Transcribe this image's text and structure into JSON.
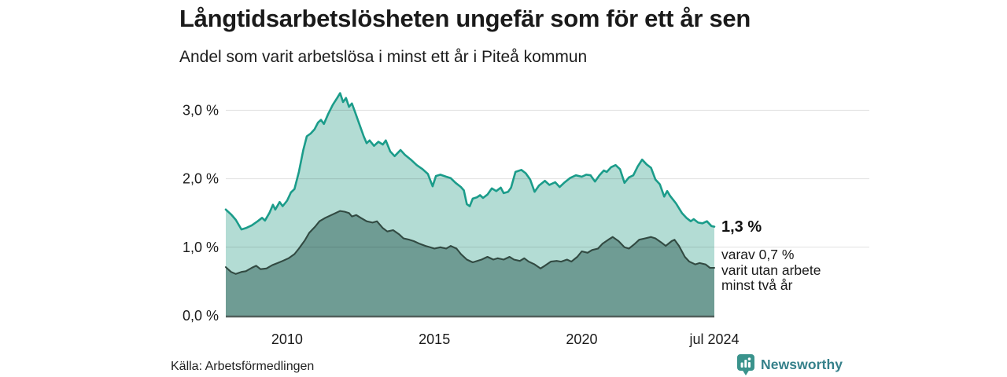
{
  "header": {
    "title": "Långtidsarbetslösheten ungefär som för ett år sen",
    "subtitle": "Andel som varit arbetslösa i minst ett år i Piteå kommun"
  },
  "chart_data": {
    "type": "area",
    "title": "Långtidsarbetslösheten ungefär som för ett år sen",
    "subtitle": "Andel som varit arbetslösa i minst ett år i Piteå kommun",
    "grid": true,
    "legend_position": "none",
    "x_axis": {
      "range": [
        2007.92,
        2024.5
      ],
      "ticks": [
        {
          "label": "2010",
          "year": 2010
        },
        {
          "label": "2015",
          "year": 2015
        },
        {
          "label": "2020",
          "year": 2020
        },
        {
          "label": "jul 2024",
          "year": 2024.5
        }
      ]
    },
    "y_axis": {
      "unit": "%",
      "range": [
        0,
        3.35
      ],
      "ticks": [
        {
          "label": "0,0 %",
          "value": 0
        },
        {
          "label": "1,0 %",
          "value": 1
        },
        {
          "label": "2,0 %",
          "value": 2
        },
        {
          "label": "3,0 %",
          "value": 3
        }
      ]
    },
    "series": [
      {
        "name": "Arbetslösa minst ett år",
        "line_color": "#1b9c8a",
        "fill_color": "#b3dcd4",
        "line_width": 2.6,
        "points": [
          [
            2007.92,
            1.55
          ],
          [
            2008.1,
            1.48
          ],
          [
            2008.26,
            1.4
          ],
          [
            2008.45,
            1.26
          ],
          [
            2008.6,
            1.28
          ],
          [
            2008.8,
            1.32
          ],
          [
            2009.0,
            1.38
          ],
          [
            2009.15,
            1.43
          ],
          [
            2009.25,
            1.39
          ],
          [
            2009.4,
            1.5
          ],
          [
            2009.52,
            1.62
          ],
          [
            2009.6,
            1.55
          ],
          [
            2009.75,
            1.66
          ],
          [
            2009.85,
            1.6
          ],
          [
            2010.0,
            1.68
          ],
          [
            2010.13,
            1.8
          ],
          [
            2010.25,
            1.85
          ],
          [
            2010.4,
            2.1
          ],
          [
            2010.55,
            2.42
          ],
          [
            2010.67,
            2.62
          ],
          [
            2010.8,
            2.66
          ],
          [
            2010.93,
            2.72
          ],
          [
            2011.05,
            2.82
          ],
          [
            2011.15,
            2.86
          ],
          [
            2011.25,
            2.8
          ],
          [
            2011.4,
            2.95
          ],
          [
            2011.55,
            3.08
          ],
          [
            2011.7,
            3.18
          ],
          [
            2011.8,
            3.25
          ],
          [
            2011.9,
            3.12
          ],
          [
            2012.0,
            3.18
          ],
          [
            2012.1,
            3.05
          ],
          [
            2012.2,
            3.1
          ],
          [
            2012.3,
            2.98
          ],
          [
            2012.45,
            2.8
          ],
          [
            2012.6,
            2.62
          ],
          [
            2012.7,
            2.52
          ],
          [
            2012.8,
            2.56
          ],
          [
            2012.95,
            2.48
          ],
          [
            2013.1,
            2.54
          ],
          [
            2013.25,
            2.5
          ],
          [
            2013.35,
            2.56
          ],
          [
            2013.5,
            2.4
          ],
          [
            2013.65,
            2.33
          ],
          [
            2013.85,
            2.42
          ],
          [
            2014.0,
            2.35
          ],
          [
            2014.2,
            2.28
          ],
          [
            2014.4,
            2.2
          ],
          [
            2014.6,
            2.14
          ],
          [
            2014.78,
            2.07
          ],
          [
            2014.94,
            1.89
          ],
          [
            2015.05,
            2.04
          ],
          [
            2015.2,
            2.06
          ],
          [
            2015.4,
            2.03
          ],
          [
            2015.55,
            2.01
          ],
          [
            2015.72,
            1.94
          ],
          [
            2015.9,
            1.88
          ],
          [
            2016.0,
            1.83
          ],
          [
            2016.1,
            1.63
          ],
          [
            2016.2,
            1.6
          ],
          [
            2016.3,
            1.71
          ],
          [
            2016.45,
            1.73
          ],
          [
            2016.55,
            1.76
          ],
          [
            2016.65,
            1.72
          ],
          [
            2016.8,
            1.77
          ],
          [
            2016.95,
            1.86
          ],
          [
            2017.1,
            1.82
          ],
          [
            2017.25,
            1.87
          ],
          [
            2017.35,
            1.79
          ],
          [
            2017.5,
            1.81
          ],
          [
            2017.6,
            1.87
          ],
          [
            2017.75,
            2.1
          ],
          [
            2017.95,
            2.13
          ],
          [
            2018.1,
            2.08
          ],
          [
            2018.25,
            1.99
          ],
          [
            2018.4,
            1.81
          ],
          [
            2018.55,
            1.9
          ],
          [
            2018.75,
            1.97
          ],
          [
            2018.9,
            1.91
          ],
          [
            2019.1,
            1.95
          ],
          [
            2019.25,
            1.88
          ],
          [
            2019.4,
            1.94
          ],
          [
            2019.6,
            2.01
          ],
          [
            2019.8,
            2.05
          ],
          [
            2020.0,
            2.03
          ],
          [
            2020.15,
            2.06
          ],
          [
            2020.3,
            2.05
          ],
          [
            2020.45,
            1.96
          ],
          [
            2020.6,
            2.05
          ],
          [
            2020.75,
            2.12
          ],
          [
            2020.85,
            2.1
          ],
          [
            2021.0,
            2.17
          ],
          [
            2021.15,
            2.2
          ],
          [
            2021.3,
            2.14
          ],
          [
            2021.45,
            1.94
          ],
          [
            2021.6,
            2.02
          ],
          [
            2021.75,
            2.05
          ],
          [
            2021.9,
            2.18
          ],
          [
            2022.05,
            2.28
          ],
          [
            2022.2,
            2.21
          ],
          [
            2022.35,
            2.16
          ],
          [
            2022.5,
            1.99
          ],
          [
            2022.65,
            1.92
          ],
          [
            2022.8,
            1.74
          ],
          [
            2022.9,
            1.82
          ],
          [
            2023.0,
            1.75
          ],
          [
            2023.2,
            1.64
          ],
          [
            2023.4,
            1.5
          ],
          [
            2023.55,
            1.43
          ],
          [
            2023.7,
            1.38
          ],
          [
            2023.8,
            1.41
          ],
          [
            2023.95,
            1.36
          ],
          [
            2024.1,
            1.35
          ],
          [
            2024.25,
            1.38
          ],
          [
            2024.4,
            1.31
          ],
          [
            2024.5,
            1.3
          ]
        ]
      },
      {
        "name": "Utan arbete minst två år",
        "line_color": "#324a42",
        "fill_color": "#6f9c94",
        "line_width": 2.1,
        "points": [
          [
            2007.92,
            0.71
          ],
          [
            2008.1,
            0.64
          ],
          [
            2008.26,
            0.61
          ],
          [
            2008.45,
            0.64
          ],
          [
            2008.6,
            0.65
          ],
          [
            2008.8,
            0.7
          ],
          [
            2008.95,
            0.73
          ],
          [
            2009.1,
            0.68
          ],
          [
            2009.3,
            0.69
          ],
          [
            2009.5,
            0.74
          ],
          [
            2009.68,
            0.77
          ],
          [
            2009.85,
            0.8
          ],
          [
            2010.05,
            0.84
          ],
          [
            2010.25,
            0.9
          ],
          [
            2010.4,
            0.98
          ],
          [
            2010.6,
            1.1
          ],
          [
            2010.75,
            1.21
          ],
          [
            2010.95,
            1.3
          ],
          [
            2011.1,
            1.38
          ],
          [
            2011.3,
            1.43
          ],
          [
            2011.5,
            1.47
          ],
          [
            2011.65,
            1.5
          ],
          [
            2011.8,
            1.53
          ],
          [
            2011.95,
            1.52
          ],
          [
            2012.1,
            1.5
          ],
          [
            2012.2,
            1.45
          ],
          [
            2012.35,
            1.47
          ],
          [
            2012.5,
            1.43
          ],
          [
            2012.7,
            1.38
          ],
          [
            2012.9,
            1.36
          ],
          [
            2013.05,
            1.38
          ],
          [
            2013.25,
            1.28
          ],
          [
            2013.4,
            1.23
          ],
          [
            2013.6,
            1.25
          ],
          [
            2013.8,
            1.19
          ],
          [
            2013.95,
            1.13
          ],
          [
            2014.15,
            1.11
          ],
          [
            2014.3,
            1.09
          ],
          [
            2014.5,
            1.05
          ],
          [
            2014.7,
            1.02
          ],
          [
            2014.85,
            1.0
          ],
          [
            2015.0,
            0.98
          ],
          [
            2015.2,
            1.0
          ],
          [
            2015.4,
            0.98
          ],
          [
            2015.55,
            1.02
          ],
          [
            2015.75,
            0.98
          ],
          [
            2015.9,
            0.9
          ],
          [
            2016.1,
            0.82
          ],
          [
            2016.3,
            0.78
          ],
          [
            2016.45,
            0.8
          ],
          [
            2016.6,
            0.82
          ],
          [
            2016.8,
            0.86
          ],
          [
            2017.0,
            0.82
          ],
          [
            2017.15,
            0.84
          ],
          [
            2017.35,
            0.82
          ],
          [
            2017.55,
            0.86
          ],
          [
            2017.7,
            0.82
          ],
          [
            2017.9,
            0.8
          ],
          [
            2018.05,
            0.84
          ],
          [
            2018.2,
            0.79
          ],
          [
            2018.4,
            0.75
          ],
          [
            2018.6,
            0.69
          ],
          [
            2018.75,
            0.73
          ],
          [
            2018.95,
            0.79
          ],
          [
            2019.15,
            0.8
          ],
          [
            2019.3,
            0.79
          ],
          [
            2019.5,
            0.82
          ],
          [
            2019.65,
            0.79
          ],
          [
            2019.85,
            0.86
          ],
          [
            2020.0,
            0.94
          ],
          [
            2020.2,
            0.92
          ],
          [
            2020.35,
            0.96
          ],
          [
            2020.55,
            0.98
          ],
          [
            2020.7,
            1.05
          ],
          [
            2020.9,
            1.11
          ],
          [
            2021.05,
            1.15
          ],
          [
            2021.25,
            1.09
          ],
          [
            2021.45,
            1.0
          ],
          [
            2021.6,
            0.98
          ],
          [
            2021.8,
            1.05
          ],
          [
            2021.95,
            1.11
          ],
          [
            2022.15,
            1.13
          ],
          [
            2022.35,
            1.15
          ],
          [
            2022.5,
            1.13
          ],
          [
            2022.7,
            1.07
          ],
          [
            2022.85,
            1.02
          ],
          [
            2023.05,
            1.09
          ],
          [
            2023.15,
            1.11
          ],
          [
            2023.3,
            1.02
          ],
          [
            2023.5,
            0.86
          ],
          [
            2023.65,
            0.79
          ],
          [
            2023.85,
            0.75
          ],
          [
            2024.0,
            0.77
          ],
          [
            2024.2,
            0.75
          ],
          [
            2024.35,
            0.7
          ],
          [
            2024.5,
            0.7
          ]
        ]
      }
    ],
    "annotations": [
      {
        "value_label": "1,3 %",
        "note": "varav 0,7 %\nvarit utan arbete\nminst två år"
      }
    ]
  },
  "footer": {
    "source": "Källa: Arbetsförmedlingen",
    "brand": "Newsworthy"
  },
  "colors": {
    "accent_teal": "#1b9c8a",
    "light_fill": "#b3dcd4",
    "dark_fill": "#6f9c94",
    "dark_line": "#324a42",
    "axis": "#515f5b",
    "brand_teal": "#35808a",
    "logo_teal": "#3a938c"
  }
}
